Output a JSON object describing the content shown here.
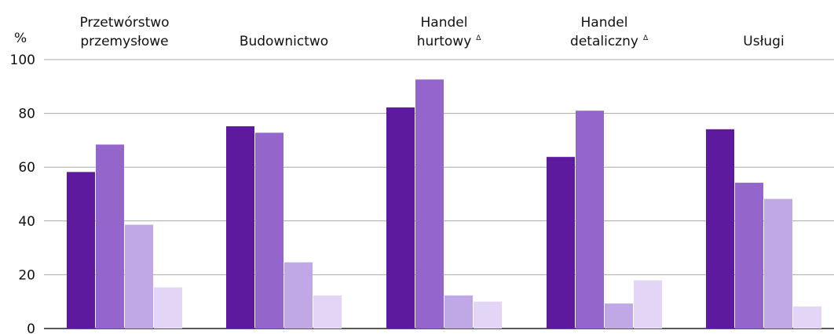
{
  "chart_data": {
    "type": "bar",
    "ylabel": "%",
    "ylim": [
      0,
      100
    ],
    "yticks": [
      "0",
      "20",
      "40",
      "60",
      "80",
      "100"
    ],
    "grid": true,
    "categories": [
      {
        "lines": [
          "Przetwórstwo",
          "przemysłowe"
        ],
        "note": ""
      },
      {
        "lines": [
          "Budownictwo"
        ],
        "note": ""
      },
      {
        "lines": [
          "Handel",
          "hurtowy"
        ],
        "note": "Δ"
      },
      {
        "lines": [
          "Handel",
          "detaliczny"
        ],
        "note": "Δ"
      },
      {
        "lines": [
          "Usługi"
        ],
        "note": ""
      }
    ],
    "series": [
      {
        "color": "#5e1a9e",
        "values": [
          58.2,
          75.2,
          82.2,
          63.8,
          74.1
        ]
      },
      {
        "color": "#9466cc",
        "values": [
          68.4,
          72.8,
          92.6,
          81.0,
          54.2
        ]
      },
      {
        "color": "#c0a8e6",
        "values": [
          38.6,
          24.6,
          12.3,
          9.3,
          48.2
        ]
      },
      {
        "color": "#e2d5f5",
        "values": [
          15.3,
          12.3,
          10.0,
          17.9,
          8.2
        ]
      }
    ]
  }
}
